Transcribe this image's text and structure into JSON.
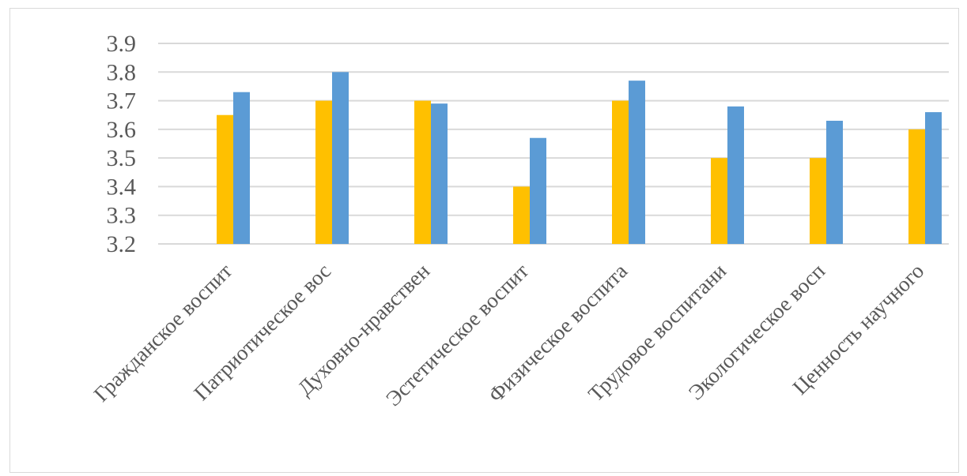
{
  "chart_data": {
    "type": "bar",
    "title": "",
    "xlabel": "",
    "ylabel": "",
    "ylim": [
      3.2,
      3.9
    ],
    "yticks": [
      "3.2",
      "3.3",
      "3.4",
      "3.5",
      "3.6",
      "3.7",
      "3.8",
      "3.9"
    ],
    "grid": true,
    "legend": "none",
    "categories": [
      "Гражданское воспит",
      "Патриотическое вос",
      "Духовно-нравствен",
      "Эстетическое воспит",
      "Физическое воспита",
      "Трудовое воспитани",
      "Экологическое восп",
      "Ценность научного"
    ],
    "series": [
      {
        "color": "#ffc000",
        "values": [
          3.65,
          3.7,
          3.7,
          3.4,
          3.7,
          3.5,
          3.5,
          3.6
        ]
      },
      {
        "color": "#5b9bd5",
        "values": [
          3.73,
          3.8,
          3.69,
          3.57,
          3.77,
          3.68,
          3.63,
          3.66
        ]
      }
    ]
  }
}
